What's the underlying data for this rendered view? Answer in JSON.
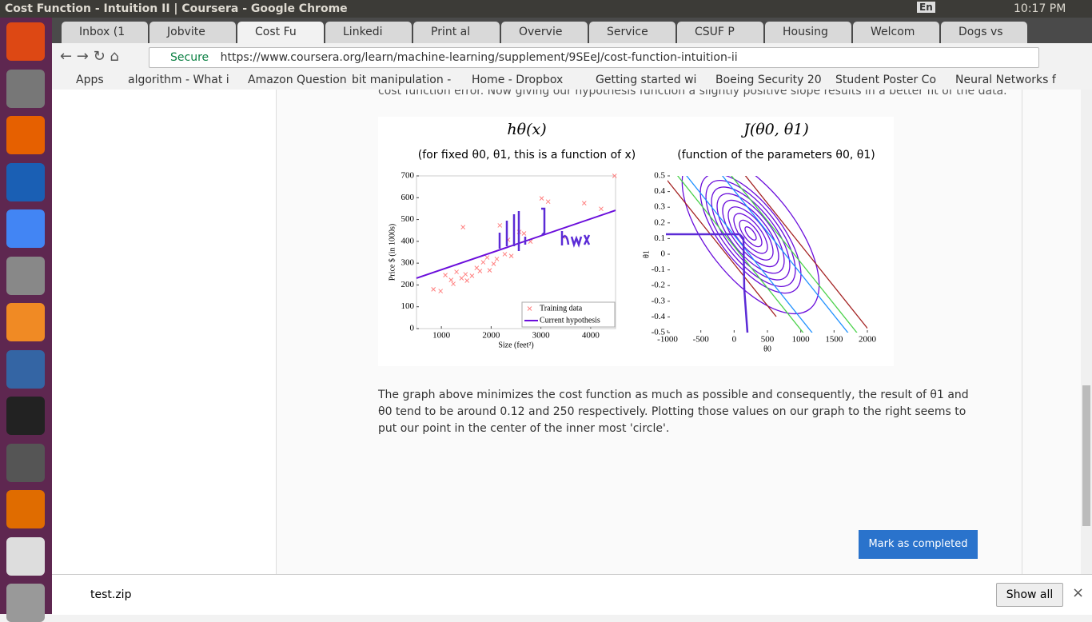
{
  "window": {
    "title": "Cost Function - Intuition II | Coursera - Google Chrome",
    "lang": "En",
    "time": "10:17 PM"
  },
  "tabs": [
    "Inbox (1",
    "Jobvite",
    "Cost Fu",
    "Linkedi",
    "Print al",
    "Overvie",
    "Service",
    "CSUF P",
    "Housing",
    "Welcom",
    "Dogs vs"
  ],
  "address": {
    "secure": "Secure",
    "url": "https://www.coursera.org/learn/machine-learning/supplement/9SEeJ/cost-function-intuition-ii"
  },
  "bookmarks": [
    "Apps",
    "algorithm - What i",
    "Amazon Question",
    "bit manipulation -",
    "Home - Dropbox",
    "Getting started wi",
    "Boeing Security 20",
    "Student Poster Co",
    "Neural Networks f"
  ],
  "content": {
    "top_text": "cost function error. Now giving our hypothesis function a slightly positive slope results in a better fit of the data.",
    "paragraph": "The graph above minimizes the cost function as much as possible and consequently, the result of θ1 and θ0 tend to be around 0.12 and 250 respectively. Plotting those values on our graph to the right seems to put our point in the center of the inner most 'circle'.",
    "button": "Mark as completed"
  },
  "chart_data": [
    {
      "type": "scatter",
      "title": "hθ(x)",
      "subtitle": "(for fixed θ0, θ1, this is a function of x)",
      "x_label": "Size (feet²)",
      "y_label": "Price $ (in 1000s)",
      "xlim": [
        500,
        4500
      ],
      "ylim": [
        0,
        700
      ],
      "xticks": [
        1000,
        2000,
        3000,
        4000
      ],
      "yticks": [
        0,
        100,
        200,
        300,
        400,
        500,
        600,
        700
      ],
      "legend": "lower right",
      "series": [
        {
          "name": "Training data",
          "color": "#ff8080",
          "x": [
            840,
            985,
            1080,
            1195,
            1240,
            1305,
            1405,
            1435,
            1485,
            1515,
            1615,
            1710,
            1775,
            1840,
            1920,
            1970,
            2050,
            2115,
            2175,
            2275,
            2340,
            2405,
            2565,
            2660,
            2790,
            3015,
            3145,
            3450,
            3870,
            4210,
            4480
          ],
          "values": [
            180,
            172,
            245,
            223,
            205,
            260,
            231,
            465,
            249,
            220,
            242,
            278,
            264,
            304,
            326,
            267,
            297,
            319,
            473,
            341,
            407,
            333,
            443,
            436,
            399,
            597,
            582,
            421,
            575,
            549,
            700
          ]
        },
        {
          "name": "Current hypothesis",
          "color": "#6a0ddb",
          "x": [
            500,
            4500
          ],
          "values": [
            231,
            542
          ]
        }
      ]
    },
    {
      "type": "contour",
      "title": "J(θ0, θ1)",
      "subtitle": "(function of the parameters θ0, θ1)",
      "x_label": "θ0",
      "y_label": "θ1",
      "xlim": [
        -1000,
        2000
      ],
      "ylim": [
        -0.5,
        0.5
      ],
      "xticks": [
        -1000,
        -500,
        0,
        500,
        1000,
        1500,
        2000
      ],
      "yticks": [
        0.5,
        0.4,
        0.3,
        0.2,
        0.1,
        0,
        -0.1,
        -0.2,
        -0.3,
        -0.4,
        -0.5
      ]
    }
  ],
  "downloads": {
    "file": "test.zip",
    "show_all": "Show all"
  }
}
